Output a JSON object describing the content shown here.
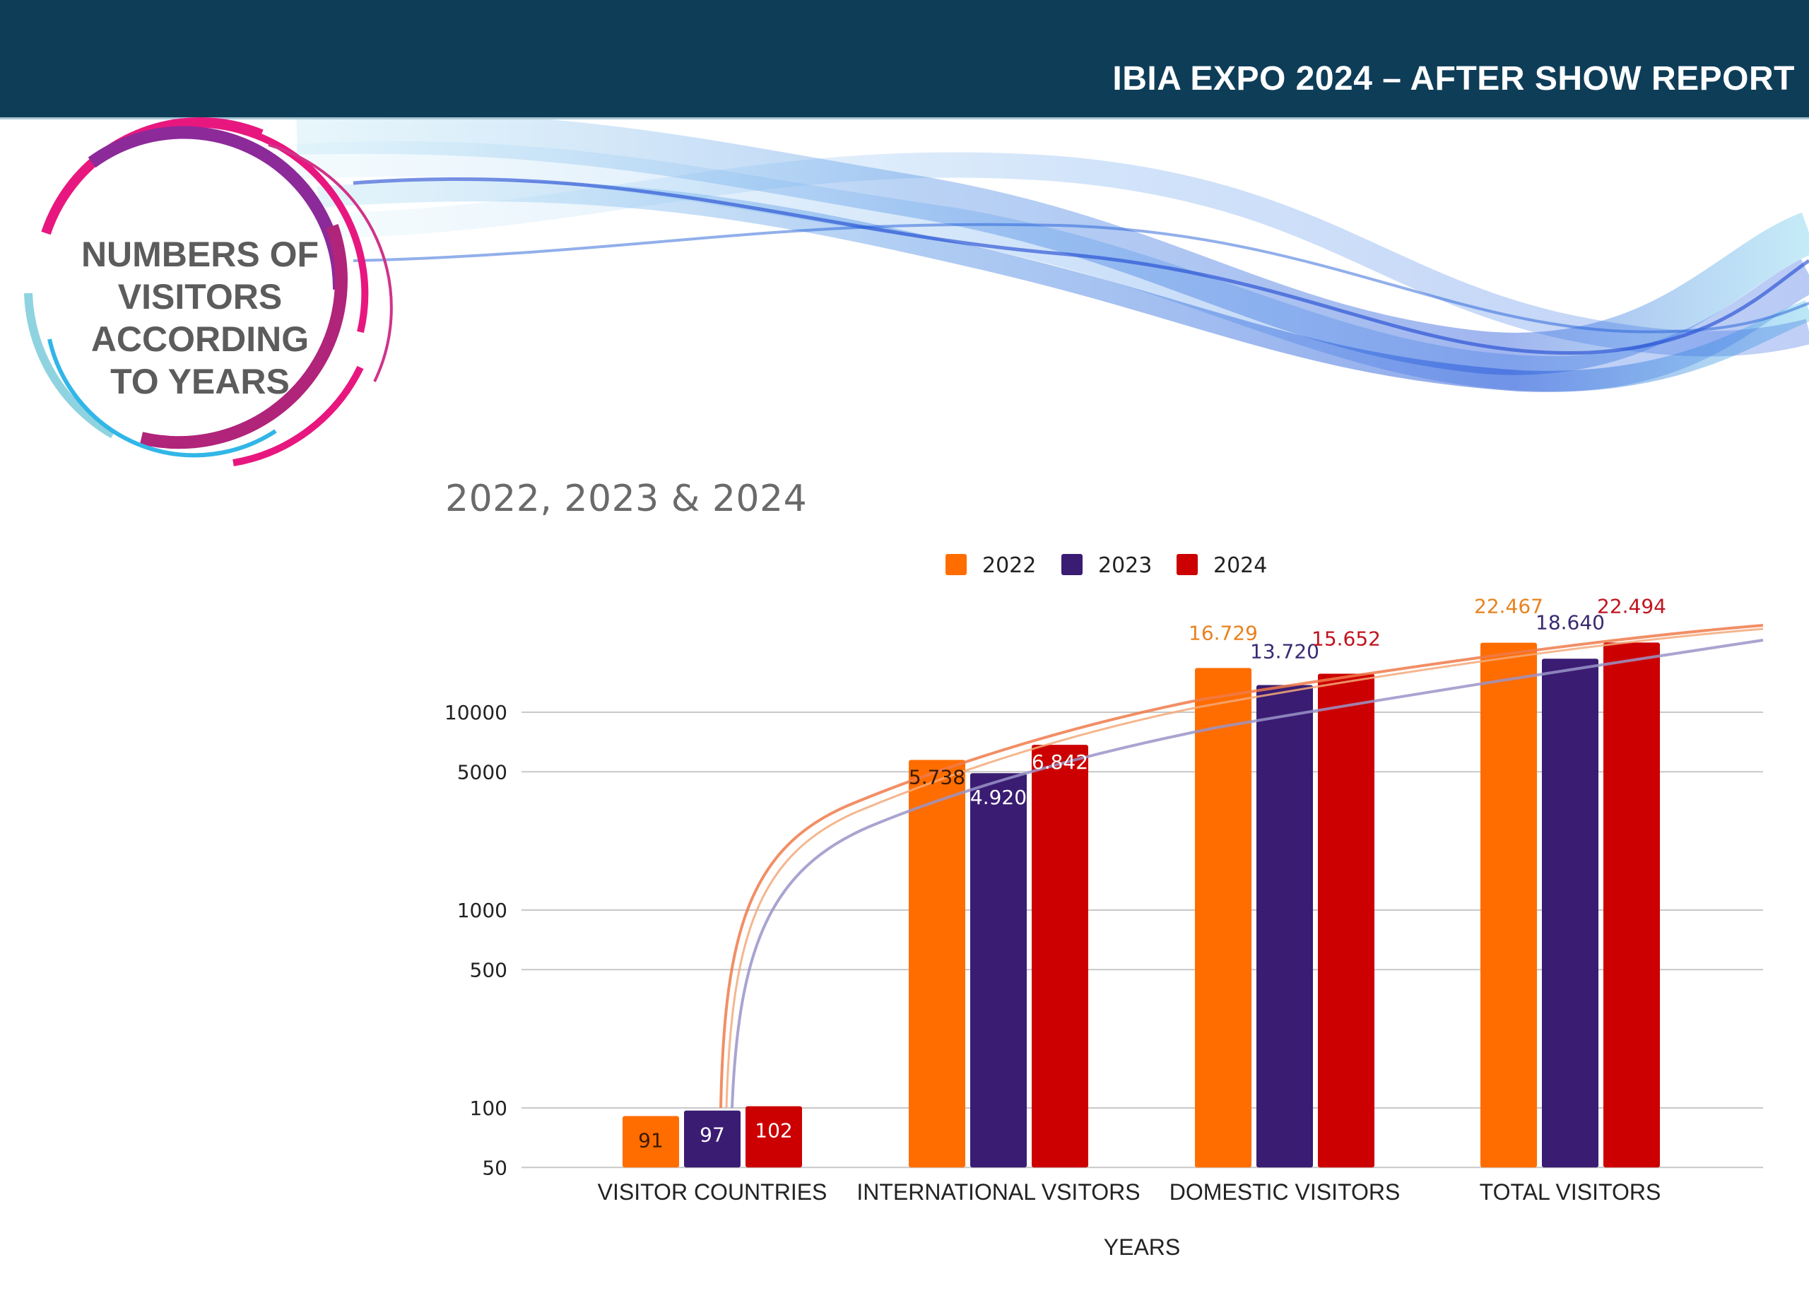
{
  "header": {
    "title": "IBIA EXPO 2024 – AFTER SHOW REPORT",
    "background": "#0e3d58"
  },
  "badge": {
    "lines": [
      "NUMBERS OF",
      "VISITORS",
      "ACCORDING",
      "TO YEARS"
    ]
  },
  "subtitle": "2022, 2023  &  2024",
  "chart_data": {
    "type": "bar",
    "title": "2022, 2023 & 2024",
    "xlabel": "YEARS",
    "ylabel": "",
    "yscale": "log",
    "ylim": [
      50,
      25000
    ],
    "yticks": [
      50,
      100,
      500,
      1000,
      5000,
      10000
    ],
    "ytick_labels": [
      "50",
      "100",
      "500",
      "1000",
      "5000",
      "10000"
    ],
    "grid": true,
    "legend_position": "top-center",
    "categories": [
      "VISITOR COUNTRIES",
      "INTERNATIONAL VSITORS",
      "DOMESTIC VISITORS",
      "TOTAL VISITORS"
    ],
    "series": [
      {
        "name": "2022",
        "color": "#ff6d00",
        "label_color": "#e8821e",
        "values": [
          91,
          5738,
          16729,
          22467
        ],
        "labels": [
          "91",
          "5.738",
          "16.729",
          "22.467"
        ]
      },
      {
        "name": "2023",
        "color": "#3a1c73",
        "label_color": "#3a2a73",
        "values": [
          97,
          4920,
          13720,
          18640
        ],
        "labels": [
          "97",
          "4.920",
          "13.720",
          "18.640"
        ]
      },
      {
        "name": "2024",
        "color": "#cc0000",
        "label_color": "#c0141e",
        "values": [
          102,
          6842,
          15652,
          22494
        ],
        "labels": [
          "102",
          "6.842",
          "15.652",
          "22.494"
        ]
      }
    ],
    "trendlines": [
      {
        "name": "trend-2022",
        "color": "#f07a4a",
        "type": "logarithmic"
      },
      {
        "name": "trend-2023",
        "color": "#9a94c8",
        "type": "logarithmic"
      }
    ]
  }
}
